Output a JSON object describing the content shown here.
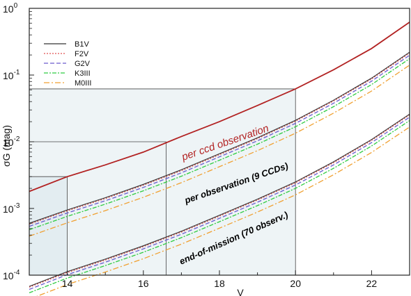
{
  "chart_data": {
    "type": "line",
    "xlabel": "V",
    "ylabel": "σG (mag)",
    "xlim": [
      13,
      23
    ],
    "ylim": [
      0.0001,
      1
    ],
    "yscale": "log",
    "grid": false,
    "legend_placement": "top-left",
    "x_ticks": [
      14,
      16,
      18,
      20,
      22
    ],
    "y_tick_labels": [
      {
        "value": 1,
        "base": "10",
        "exp": "0"
      },
      {
        "value": 0.1,
        "base": "10",
        "exp": "-1"
      },
      {
        "value": 0.01,
        "base": "10",
        "exp": "-2"
      },
      {
        "value": 0.001,
        "base": "10",
        "exp": "-3"
      },
      {
        "value": 0.0001,
        "base": "10",
        "exp": "-4"
      }
    ],
    "legend": [
      {
        "name": "B1V",
        "color": "#333333",
        "dash": ""
      },
      {
        "name": "F2V",
        "color": "#e05050",
        "dash": "2,2"
      },
      {
        "name": "G2V",
        "color": "#6a5acd",
        "dash": "6,3"
      },
      {
        "name": "K3III",
        "color": "#2ecc40",
        "dash": "6,2,2,2"
      },
      {
        "name": "M0III",
        "color": "#f0a030",
        "dash": "8,3,2,3"
      }
    ],
    "per_ccd_curve": {
      "color": "#b22222",
      "points": [
        [
          13,
          0.0018
        ],
        [
          14,
          0.003
        ],
        [
          15,
          0.0045
        ],
        [
          16,
          0.007
        ],
        [
          17,
          0.012
        ],
        [
          18,
          0.02
        ],
        [
          19,
          0.035
        ],
        [
          20,
          0.062
        ],
        [
          21,
          0.12
        ],
        [
          22,
          0.25
        ],
        [
          23,
          0.62
        ]
      ]
    },
    "per_observation_base": [
      [
        13,
        0.0006
      ],
      [
        14,
        0.00095
      ],
      [
        15,
        0.00145
      ],
      [
        16,
        0.0023
      ],
      [
        17,
        0.0038
      ],
      [
        18,
        0.0066
      ],
      [
        19,
        0.0115
      ],
      [
        20,
        0.021
      ],
      [
        21,
        0.042
      ],
      [
        22,
        0.09
      ],
      [
        23,
        0.22
      ]
    ],
    "end_of_mission_base": [
      [
        13,
        6.8e-05
      ],
      [
        14,
        0.000113
      ],
      [
        15,
        0.000174
      ],
      [
        16,
        0.000276
      ],
      [
        17,
        0.000456
      ],
      [
        18,
        0.00079
      ],
      [
        19,
        0.00138
      ],
      [
        20,
        0.0025
      ],
      [
        21,
        0.005
      ],
      [
        22,
        0.0108
      ],
      [
        23,
        0.026
      ]
    ],
    "type_offsets": {
      "B1V": 1.0,
      "F2V": 0.97,
      "G2V": 0.9,
      "K3III": 0.8,
      "M0III": 0.64
    },
    "guide_lines": [
      {
        "x": 14,
        "y": 0.003
      },
      {
        "x": 16.6,
        "y": 0.01
      },
      {
        "x": 20,
        "y": 0.062
      }
    ],
    "annotations": {
      "per_ccd": "per ccd observation",
      "per_obs": "per observation (9 CCDs)",
      "end_mission": "end-of-mission (70 observ.)"
    }
  }
}
